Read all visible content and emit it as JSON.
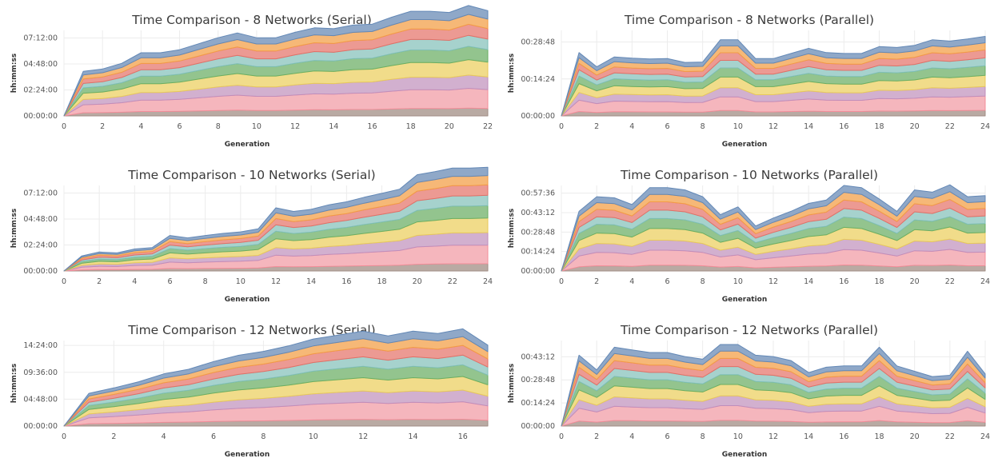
{
  "layer_colors": [
    "#b9aaa3",
    "#f5b6bd",
    "#d2b0cf",
    "#f1dc8a",
    "#93c48e",
    "#a6d2cd",
    "#ec9a93",
    "#f6b877",
    "#8fa8c8"
  ],
  "layer_strokes": [
    "#a18d84",
    "#f48d99",
    "#c08ebb",
    "#e8c95a",
    "#6aae63",
    "#7fbfb7",
    "#e36f66",
    "#f39c45",
    "#6388b6"
  ],
  "chart_data": [
    {
      "type": "area",
      "stacked": true,
      "title": "Time Comparison - 8 Networks (Serial)",
      "xlabel": "Generation",
      "ylabel": "hh:mm:ss",
      "xlim": [
        0,
        22
      ],
      "ylim": [
        0,
        28440
      ],
      "xticks": [
        0,
        2,
        4,
        6,
        8,
        10,
        12,
        14,
        16,
        18,
        20,
        22
      ],
      "xtick_labels": [
        "0",
        "2",
        "4",
        "6",
        "8",
        "10",
        "12",
        "14",
        "16",
        "18",
        "20",
        "22"
      ],
      "yticks": [
        0,
        8640,
        17280,
        25920
      ],
      "ytick_labels": [
        "00:00:00",
        "02:24:00",
        "04:48:00",
        "07:12:00"
      ],
      "x": [
        0,
        1,
        2,
        3,
        4,
        5,
        6,
        7,
        8,
        9,
        10,
        11,
        12,
        13,
        14,
        15,
        16,
        17,
        18,
        19,
        20,
        21,
        22
      ],
      "total": [
        0,
        14800,
        15600,
        17500,
        21000,
        21000,
        22000,
        24000,
        26000,
        27600,
        26000,
        26000,
        27800,
        29300,
        29000,
        30200,
        30500,
        32800,
        34800,
        34800,
        34400,
        36700,
        35000
      ]
    },
    {
      "type": "area",
      "stacked": true,
      "title": "Time Comparison - 8 Networks (Parallel)",
      "xlabel": "Generation",
      "ylabel": "hh:mm:ss",
      "xlim": [
        0,
        24
      ],
      "ylim": [
        0,
        2000
      ],
      "xticks": [
        0,
        2,
        4,
        6,
        8,
        10,
        12,
        14,
        16,
        18,
        20,
        22,
        24
      ],
      "xtick_labels": [
        "0",
        "2",
        "4",
        "6",
        "8",
        "10",
        "12",
        "14",
        "16",
        "18",
        "20",
        "22",
        "24"
      ],
      "yticks": [
        0,
        864,
        1728
      ],
      "ytick_labels": [
        "00:00:00",
        "00:14:24",
        "00:28:48"
      ],
      "x": [
        0,
        1,
        2,
        3,
        4,
        5,
        6,
        7,
        8,
        9,
        10,
        11,
        12,
        13,
        14,
        15,
        16,
        17,
        18,
        19,
        20,
        21,
        22,
        23,
        24
      ],
      "total": [
        0,
        1480,
        1150,
        1380,
        1350,
        1330,
        1340,
        1250,
        1260,
        1780,
        1780,
        1340,
        1340,
        1460,
        1580,
        1480,
        1460,
        1460,
        1620,
        1600,
        1650,
        1780,
        1750,
        1800,
        1860
      ]
    },
    {
      "type": "area",
      "stacked": true,
      "title": "Time Comparison - 10 Networks (Serial)",
      "xlabel": "Generation",
      "ylabel": "hh:mm:ss",
      "xlim": [
        0,
        24
      ],
      "ylim": [
        0,
        28440
      ],
      "xticks": [
        0,
        2,
        4,
        6,
        8,
        10,
        12,
        14,
        16,
        18,
        20,
        22,
        24
      ],
      "xtick_labels": [
        "0",
        "2",
        "4",
        "6",
        "8",
        "10",
        "12",
        "14",
        "16",
        "18",
        "20",
        "22",
        "24"
      ],
      "yticks": [
        0,
        8640,
        17280,
        25920
      ],
      "ytick_labels": [
        "00:00:00",
        "02:24:00",
        "04:48:00",
        "07:12:00"
      ],
      "x": [
        0,
        1,
        2,
        3,
        4,
        5,
        6,
        7,
        8,
        9,
        10,
        11,
        12,
        13,
        14,
        15,
        16,
        17,
        18,
        19,
        20,
        21,
        22,
        23,
        24
      ],
      "total": [
        0,
        5000,
        6300,
        6000,
        7300,
        7800,
        11800,
        11000,
        11800,
        12500,
        13000,
        14000,
        21000,
        19800,
        20500,
        22000,
        23000,
        24500,
        25800,
        27200,
        32000,
        33000,
        34200,
        34200,
        34500
      ]
    },
    {
      "type": "area",
      "stacked": true,
      "title": "Time Comparison - 10 Networks (Parallel)",
      "xlabel": "Generation",
      "ylabel": "hh:mm:ss",
      "xlim": [
        0,
        24
      ],
      "ylim": [
        0,
        3800
      ],
      "xticks": [
        0,
        2,
        4,
        6,
        8,
        10,
        12,
        14,
        16,
        18,
        20,
        22,
        24
      ],
      "xtick_labels": [
        "0",
        "2",
        "4",
        "6",
        "8",
        "10",
        "12",
        "14",
        "16",
        "18",
        "20",
        "22",
        "24"
      ],
      "yticks": [
        0,
        864,
        1728,
        2592,
        3456
      ],
      "ytick_labels": [
        "00:00:00",
        "00:14:24",
        "00:28:48",
        "00:43:12",
        "00:57:36"
      ],
      "x": [
        0,
        1,
        2,
        3,
        4,
        5,
        6,
        7,
        8,
        9,
        10,
        11,
        12,
        13,
        14,
        15,
        16,
        17,
        18,
        19,
        20,
        21,
        22,
        23,
        24
      ],
      "total": [
        0,
        2650,
        3300,
        3250,
        2950,
        3700,
        3700,
        3600,
        3300,
        2500,
        2850,
        2000,
        2350,
        2650,
        3000,
        3150,
        3800,
        3700,
        3200,
        2650,
        3600,
        3500,
        3830,
        3300,
        3350
      ]
    },
    {
      "type": "area",
      "stacked": true,
      "title": "Time Comparison - 12 Networks (Serial)",
      "xlabel": "Generation",
      "ylabel": "hh:mm:ss",
      "xlim": [
        0,
        17
      ],
      "ylim": [
        0,
        55000
      ],
      "xticks": [
        0,
        2,
        4,
        6,
        8,
        10,
        12,
        14,
        16
      ],
      "xtick_labels": [
        "0",
        "2",
        "4",
        "6",
        "8",
        "10",
        "12",
        "14",
        "16"
      ],
      "yticks": [
        0,
        17280,
        34560,
        51840
      ],
      "ytick_labels": [
        "00:00:00",
        "04:48:00",
        "09:36:00",
        "14:24:00"
      ],
      "x": [
        0,
        1,
        2,
        3,
        4,
        5,
        6,
        7,
        8,
        9,
        10,
        11,
        12,
        13,
        14,
        15,
        16,
        17
      ],
      "total": [
        0,
        21000,
        24500,
        28500,
        33500,
        36500,
        41500,
        45500,
        48000,
        51500,
        56000,
        58500,
        61000,
        58000,
        61000,
        59500,
        62500,
        52000
      ]
    },
    {
      "type": "area",
      "stacked": true,
      "title": "Time Comparison - 12 Networks (Parallel)",
      "xlabel": "Generation",
      "ylabel": "hh:mm:ss",
      "xlim": [
        0,
        24
      ],
      "ylim": [
        0,
        3200
      ],
      "xticks": [
        0,
        2,
        4,
        6,
        8,
        10,
        12,
        14,
        16,
        18,
        20,
        22,
        24
      ],
      "xtick_labels": [
        "0",
        "2",
        "4",
        "6",
        "8",
        "10",
        "12",
        "14",
        "16",
        "18",
        "20",
        "22",
        "24"
      ],
      "yticks": [
        0,
        864,
        1728,
        2592
      ],
      "ytick_labels": [
        "00:00:00",
        "00:14:24",
        "00:28:48",
        "00:43:12"
      ],
      "x": [
        0,
        1,
        2,
        3,
        4,
        5,
        6,
        7,
        8,
        9,
        10,
        11,
        12,
        13,
        14,
        15,
        16,
        17,
        18,
        19,
        20,
        21,
        22,
        23,
        24
      ],
      "total": [
        0,
        2650,
        2100,
        2950,
        2850,
        2750,
        2750,
        2600,
        2500,
        3050,
        3050,
        2650,
        2600,
        2450,
        2000,
        2200,
        2250,
        2250,
        2950,
        2250,
        2050,
        1850,
        1900,
        2800,
        1950
      ]
    }
  ]
}
